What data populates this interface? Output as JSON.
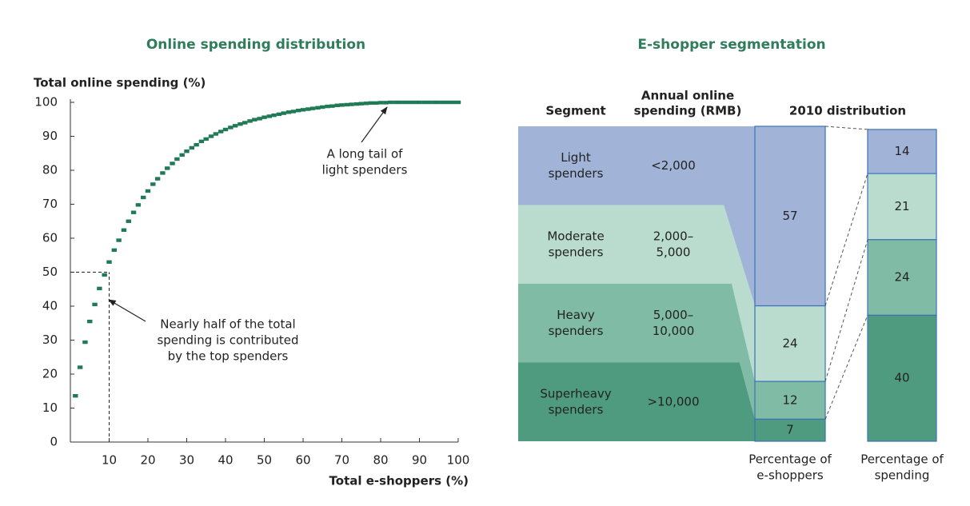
{
  "chart_data": [
    {
      "type": "scatter",
      "title": "Online spending distribution",
      "y_label": "Total online spending (%)",
      "x_label": "Total e-shoppers (%)",
      "x": [
        1.3,
        2.5,
        3.8,
        5,
        6.3,
        7.5,
        8.8,
        10,
        11.3,
        12.5,
        13.8,
        15,
        16.3,
        17.5,
        18.8,
        20,
        21.3,
        22.5,
        23.8,
        25,
        26.3,
        27.5,
        28.8,
        30,
        31.3,
        32.5,
        33.8,
        35,
        36.3,
        37.5,
        38.8,
        40,
        41.3,
        42.5,
        43.8,
        45,
        46.3,
        47.5,
        48.8,
        50,
        51.3,
        52.5,
        53.8,
        55,
        56.3,
        57.5,
        58.8,
        60,
        61.3,
        62.5,
        63.8,
        65,
        66.3,
        67.5,
        68.8,
        70,
        71.3,
        72.5,
        73.8,
        75,
        76.3,
        77.5,
        78.8,
        80,
        81.3,
        82.5,
        83.8,
        85,
        86.3,
        87.5,
        88.8,
        90,
        91.3,
        92.5,
        93.8,
        95,
        96.3,
        97.5,
        98.8,
        100
      ],
      "values": [
        13.6,
        22,
        29.4,
        35.5,
        40.5,
        45.2,
        49.2,
        53,
        56.5,
        59.4,
        62.4,
        65,
        67.6,
        69.8,
        72,
        73.9,
        75.9,
        77.5,
        79.2,
        80.6,
        82,
        83.3,
        84.5,
        85.6,
        86.6,
        87.5,
        88.5,
        89.2,
        90,
        90.7,
        91.4,
        92,
        92.6,
        93.1,
        93.6,
        94,
        94.5,
        94.9,
        95.2,
        95.6,
        95.9,
        96.2,
        96.5,
        96.8,
        97.1,
        97.3,
        97.6,
        97.8,
        98,
        98.2,
        98.4,
        98.6,
        98.8,
        98.9,
        99.1,
        99.2,
        99.3,
        99.4,
        99.5,
        99.6,
        99.7,
        99.8,
        99.8,
        99.9,
        99.9,
        100,
        100,
        100,
        100,
        100,
        100,
        100,
        100,
        100,
        100,
        100,
        100,
        100,
        100,
        100
      ],
      "color": "#1f7a55",
      "xlim": [
        0,
        100
      ],
      "xticks": [
        10,
        20,
        30,
        40,
        50,
        60,
        70,
        80,
        90,
        100
      ],
      "ylim": [
        0,
        100
      ],
      "yticks": [
        0,
        10,
        20,
        30,
        40,
        50,
        60,
        70,
        80,
        90,
        100
      ],
      "reference": {
        "x": 10,
        "y": 50
      },
      "annotations": [
        {
          "lines": [
            "A long tail of",
            "light spenders"
          ]
        },
        {
          "lines": [
            "Nearly half of the total",
            "spending is contributed",
            "by the top spenders"
          ]
        }
      ]
    },
    {
      "type": "bar",
      "stacked": true,
      "title": "E-shopper segmentation",
      "column_headers": {
        "segment": "Segment",
        "spending": [
          "Annual online",
          "spending (RMB)"
        ],
        "distribution": "2010 distribution"
      },
      "categories": [
        [
          "Percentage of",
          "e-shoppers"
        ],
        [
          "Percentage of",
          "spending"
        ]
      ],
      "ylim": [
        0,
        100
      ],
      "series": [
        {
          "name": [
            "Light",
            "spenders"
          ],
          "range": [
            "<2,000"
          ],
          "color": "#a1b4d7",
          "values": [
            57,
            14
          ]
        },
        {
          "name": [
            "Moderate",
            "spenders"
          ],
          "range": [
            "2,000–",
            "5,000"
          ],
          "color": "#b9dccf",
          "values": [
            24,
            21
          ]
        },
        {
          "name": [
            "Heavy",
            "spenders"
          ],
          "range": [
            "5,000–",
            "10,000"
          ],
          "color": "#80bba5",
          "values": [
            12,
            24
          ]
        },
        {
          "name": [
            "Superheavy",
            "spenders"
          ],
          "range": [
            ">10,000"
          ],
          "color": "#4e9b80",
          "values": [
            7,
            40
          ]
        }
      ]
    }
  ]
}
